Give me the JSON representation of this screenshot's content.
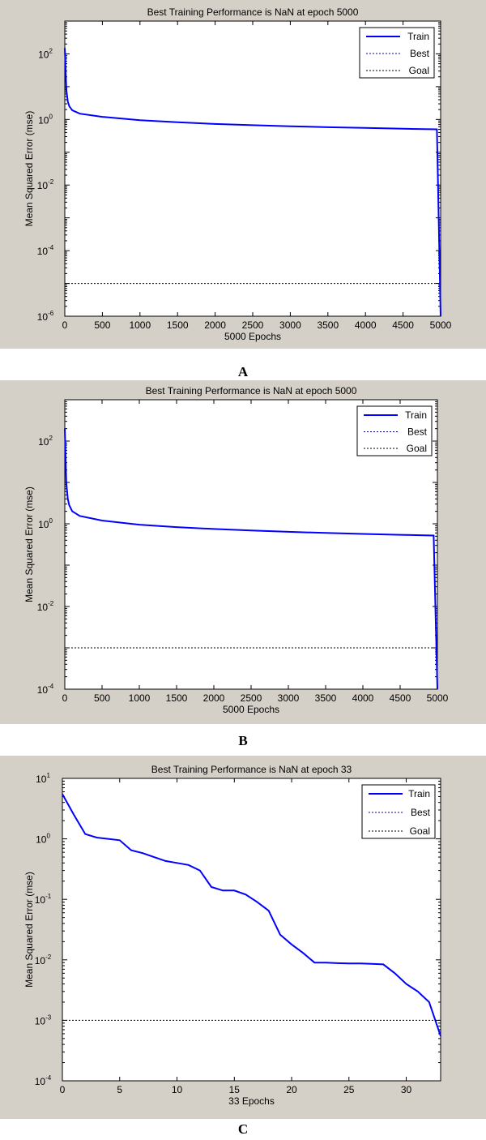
{
  "chart_data": [
    {
      "type": "line",
      "title": "Best Training Performance is NaN at epoch 5000",
      "xlabel": "5000 Epochs",
      "ylabel": "Mean Squared Error  (mse)",
      "yscale": "log",
      "xlim": [
        0,
        5000
      ],
      "ylim_exp": [
        -6,
        3
      ],
      "x_ticks": [
        0,
        500,
        1000,
        1500,
        2000,
        2500,
        3000,
        3500,
        4000,
        4500,
        5000
      ],
      "y_ticks_exp": [
        -6,
        -4,
        -2,
        0,
        2
      ],
      "legend": {
        "position": "top-right",
        "entries": [
          "Train",
          "Best",
          "Goal"
        ]
      },
      "colors": {
        "train": "#0000ff",
        "best": "#0000aa",
        "goal": "#000000"
      },
      "series": [
        {
          "name": "Train",
          "x": [
            0,
            10,
            20,
            40,
            60,
            100,
            200,
            500,
            1000,
            1500,
            2000,
            2500,
            3000,
            3500,
            4000,
            4500,
            4950,
            5000
          ],
          "y": [
            150,
            40,
            8,
            3.5,
            2.5,
            1.9,
            1.5,
            1.2,
            0.95,
            0.82,
            0.73,
            0.67,
            0.62,
            0.58,
            0.55,
            0.52,
            0.5,
            1e-06
          ]
        },
        {
          "name": "Goal",
          "x": [
            0,
            5000
          ],
          "y": [
            1e-05,
            1e-05
          ]
        }
      ]
    },
    {
      "type": "line",
      "title": "Best Training Performance is NaN at epoch 5000",
      "xlabel": "5000 Epochs",
      "ylabel": "Mean Squared Error  (mse)",
      "yscale": "log",
      "xlim": [
        0,
        5000
      ],
      "ylim_exp": [
        -4,
        3
      ],
      "x_ticks": [
        0,
        500,
        1000,
        1500,
        2000,
        2500,
        3000,
        3500,
        4000,
        4500,
        5000
      ],
      "y_ticks_exp": [
        -4,
        -2,
        0,
        2
      ],
      "legend": {
        "position": "top-right",
        "entries": [
          "Train",
          "Best",
          "Goal"
        ]
      },
      "colors": {
        "train": "#0000ff",
        "best": "#0000aa",
        "goal": "#000000"
      },
      "series": [
        {
          "name": "Train",
          "x": [
            0,
            10,
            20,
            40,
            60,
            100,
            200,
            500,
            1000,
            1500,
            2000,
            2500,
            3000,
            3500,
            4000,
            4500,
            4950,
            5000
          ],
          "y": [
            200,
            50,
            10,
            4,
            2.8,
            2.0,
            1.55,
            1.2,
            0.95,
            0.83,
            0.75,
            0.69,
            0.64,
            0.6,
            0.57,
            0.54,
            0.52,
            0.0001
          ]
        },
        {
          "name": "Goal",
          "x": [
            0,
            5000
          ],
          "y": [
            0.001,
            0.001
          ]
        }
      ]
    },
    {
      "type": "line",
      "title": "Best Training Performance is NaN at epoch 33",
      "xlabel": "33 Epochs",
      "ylabel": "Mean Squared Error  (mse)",
      "yscale": "log",
      "xlim": [
        0,
        33
      ],
      "ylim_exp": [
        -4,
        1
      ],
      "x_ticks": [
        0,
        5,
        10,
        15,
        20,
        25,
        30
      ],
      "y_ticks_exp": [
        -4,
        -3,
        -2,
        -1,
        0,
        1
      ],
      "legend": {
        "position": "top-right",
        "entries": [
          "Train",
          "Best",
          "Goal"
        ]
      },
      "colors": {
        "train": "#0000ff",
        "best": "#0000aa",
        "goal": "#000000"
      },
      "series": [
        {
          "name": "Train",
          "x": [
            0,
            1,
            2,
            3,
            4,
            5,
            6,
            7,
            8,
            9,
            10,
            11,
            12,
            13,
            14,
            15,
            16,
            17,
            18,
            19,
            20,
            21,
            22,
            23,
            24,
            25,
            26,
            27,
            28,
            29,
            30,
            31,
            32,
            33
          ],
          "y": [
            5.5,
            2.5,
            1.2,
            1.05,
            1.0,
            0.95,
            0.65,
            0.58,
            0.5,
            0.43,
            0.4,
            0.37,
            0.3,
            0.16,
            0.14,
            0.14,
            0.12,
            0.09,
            0.065,
            0.026,
            0.018,
            0.013,
            0.009,
            0.009,
            0.0088,
            0.0087,
            0.0087,
            0.0086,
            0.0084,
            0.006,
            0.004,
            0.003,
            0.002,
            0.00055
          ]
        },
        {
          "name": "Goal",
          "x": [
            0,
            33
          ],
          "y": [
            0.001,
            0.001
          ]
        }
      ]
    }
  ],
  "captions": [
    "A",
    "B",
    "C"
  ]
}
